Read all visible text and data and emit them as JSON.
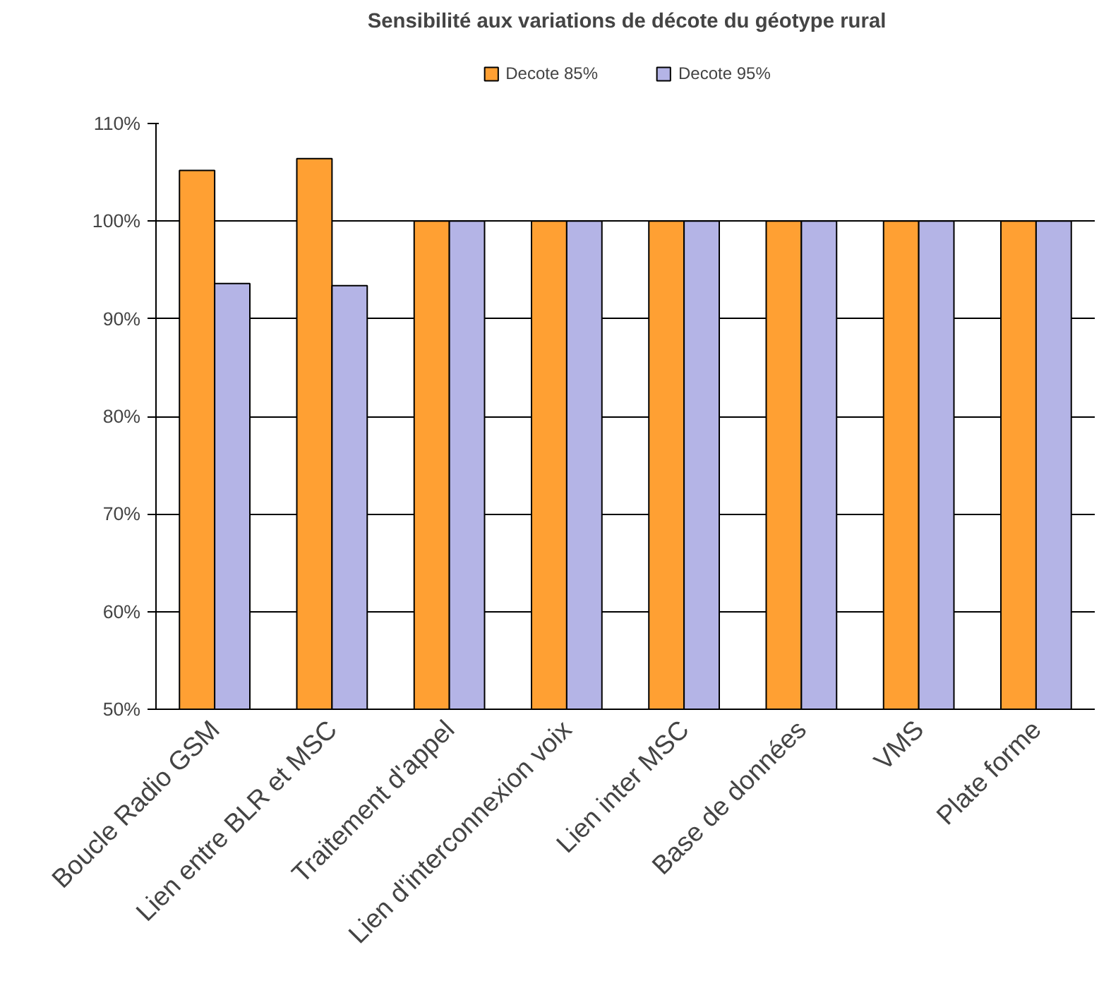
{
  "chart_data": {
    "type": "bar",
    "title": "Sensibilité aux variations de décote du géotype rural",
    "categories": [
      "Boucle Radio GSM",
      "Lien entre BLR et MSC",
      "Traitement d'appel",
      "Lien d'interconnexion voix",
      "Lien inter MSC",
      "Base de données",
      "VMS",
      "Plate forme"
    ],
    "series": [
      {
        "name": "Decote 85%",
        "color": "#ffa033",
        "values": [
          105.2,
          106.4,
          100,
          100,
          100,
          100,
          100,
          100
        ]
      },
      {
        "name": "Decote 95%",
        "color": "#b4b4e6",
        "values": [
          93.6,
          93.4,
          100,
          100,
          100,
          100,
          100,
          100
        ]
      }
    ],
    "ylim": [
      50,
      110
    ],
    "yticks": [
      {
        "value": 50,
        "label": "50%"
      },
      {
        "value": 60,
        "label": "60%"
      },
      {
        "value": 70,
        "label": "70%"
      },
      {
        "value": 80,
        "label": "80%"
      },
      {
        "value": 90,
        "label": "90%"
      },
      {
        "value": 100,
        "label": "100%"
      },
      {
        "value": 110,
        "label": "110%"
      }
    ],
    "grid": "y",
    "legend": "top"
  }
}
